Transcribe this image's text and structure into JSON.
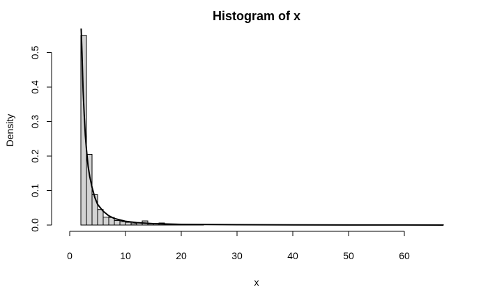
{
  "chart_data": {
    "type": "bar",
    "title": "Histogram of x",
    "xlabel": "x",
    "ylabel": "Density",
    "xlim": [
      0,
      67
    ],
    "ylim": [
      0,
      0.55
    ],
    "x_ticks": [
      0,
      10,
      20,
      30,
      40,
      50,
      60
    ],
    "y_ticks": [
      0.0,
      0.1,
      0.2,
      0.3,
      0.4,
      0.5
    ],
    "y_tick_labels": [
      "0.0",
      "0.1",
      "0.2",
      "0.3",
      "0.4",
      "0.5"
    ],
    "bin_edges": [
      2,
      3,
      4,
      5,
      6,
      7,
      8,
      9,
      10,
      11,
      12,
      13,
      14,
      15,
      16,
      17,
      18,
      19,
      20,
      21,
      22,
      23,
      24,
      25,
      26,
      27,
      28,
      29,
      30,
      31,
      32,
      33,
      34,
      35,
      36,
      37,
      38,
      39,
      40,
      41,
      42,
      43,
      44,
      45,
      46,
      47,
      48,
      49,
      50,
      51,
      52,
      53,
      54,
      55,
      56,
      57,
      58,
      59,
      60,
      61,
      62,
      63,
      64,
      65,
      66,
      67
    ],
    "densities": [
      0.55,
      0.205,
      0.088,
      0.045,
      0.023,
      0.022,
      0.013,
      0.01,
      0.008,
      0.004,
      0.006,
      0.012,
      0.003,
      0.004,
      0.006,
      0.003,
      0.002,
      0.002,
      0.002,
      0.002,
      0.001,
      0.001,
      0,
      0,
      0,
      0,
      0,
      0,
      0,
      0,
      0,
      0,
      0,
      0,
      0,
      0,
      0,
      0,
      0,
      0,
      0,
      0,
      0,
      0,
      0,
      0,
      0,
      0,
      0,
      0,
      0,
      0,
      0,
      0,
      0,
      0,
      0,
      0,
      0,
      0,
      0,
      0,
      0,
      0,
      0.001
    ],
    "series": [
      {
        "type": "line",
        "x": [
          2.05,
          2.2,
          2.4,
          2.6,
          2.8,
          3.0,
          3.3,
          3.6,
          4.0,
          4.5,
          5.0,
          6.0,
          7.0,
          8.0,
          10.0,
          12.0,
          15.0,
          20.0,
          30.0,
          40.0,
          50.0,
          60.0,
          67.0
        ],
        "y": [
          0.57,
          0.5,
          0.39,
          0.32,
          0.26,
          0.22,
          0.17,
          0.14,
          0.11,
          0.08,
          0.06,
          0.04,
          0.027,
          0.019,
          0.011,
          0.007,
          0.004,
          0.002,
          0.001,
          0.0005,
          0.0003,
          0.0002,
          0.0001
        ]
      }
    ],
    "colors": {
      "bar_fill": "#d3d3d3",
      "bar_stroke": "#000000",
      "curve": "#000000"
    }
  }
}
